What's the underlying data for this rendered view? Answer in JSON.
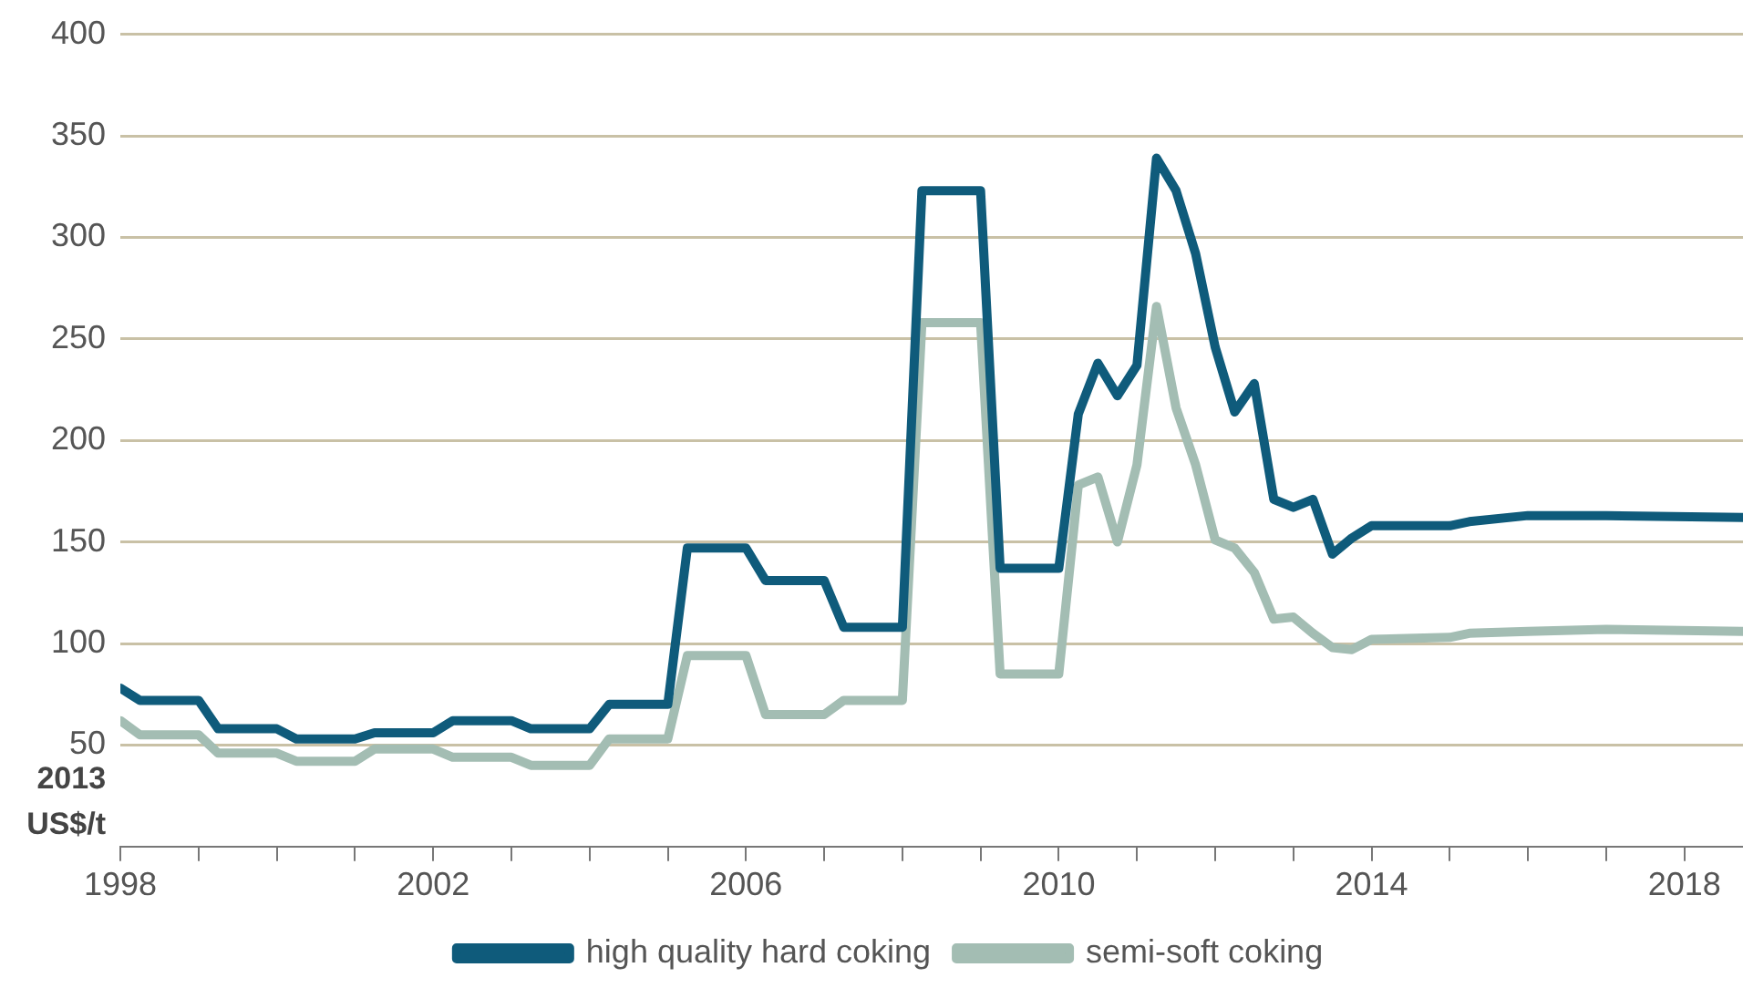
{
  "chart_data": {
    "type": "line",
    "ylabel": "2013 US$/t",
    "xlim": [
      1998,
      2018.75
    ],
    "ylim": [
      0,
      400
    ],
    "xticks": [
      1998,
      {
        "value": 1999,
        "label": null
      },
      {
        "value": 2000,
        "label": null
      },
      {
        "value": 2001,
        "label": null
      },
      2002,
      {
        "value": 2003,
        "label": null
      },
      {
        "value": 2004,
        "label": null
      },
      {
        "value": 2005,
        "label": null
      },
      2006,
      {
        "value": 2007,
        "label": null
      },
      {
        "value": 2008,
        "label": null
      },
      {
        "value": 2009,
        "label": null
      },
      2010,
      {
        "value": 2011,
        "label": null
      },
      {
        "value": 2012,
        "label": null
      },
      {
        "value": 2013,
        "label": null
      },
      2014,
      {
        "value": 2015,
        "label": null
      },
      {
        "value": 2016,
        "label": null
      },
      {
        "value": 2017,
        "label": null
      },
      2018
    ],
    "yticks": [
      50,
      100,
      150,
      200,
      250,
      300,
      350,
      400
    ],
    "grid": "y",
    "legend": "bottom",
    "marker": "none",
    "line_style": "solid",
    "series": [
      {
        "name": "high quality hard coking",
        "color": "#0f5b7b",
        "x": [
          1998,
          1998.25,
          1999,
          1999.25,
          2000,
          2000.25,
          2001,
          2001.25,
          2002,
          2002.25,
          2003,
          2003.25,
          2004,
          2004.25,
          2005,
          2005.25,
          2006,
          2006.25,
          2007,
          2007.25,
          2008,
          2008.25,
          2009,
          2009.25,
          2010,
          2010.25,
          2010.5,
          2010.75,
          2011,
          2011.25,
          2011.5,
          2011.75,
          2012,
          2012.25,
          2012.5,
          2012.75,
          2013,
          2013.25,
          2013.5,
          2013.75,
          2014,
          2015,
          2015.25,
          2016,
          2017,
          2018.75
        ],
        "values": [
          78,
          72,
          72,
          58,
          58,
          53,
          53,
          56,
          56,
          62,
          62,
          58,
          58,
          70,
          70,
          147,
          147,
          131,
          131,
          108,
          108,
          323,
          323,
          137,
          137,
          213,
          238,
          222,
          237,
          339,
          323,
          292,
          246,
          214,
          228,
          171,
          167,
          171,
          144,
          152,
          158,
          158,
          160,
          163,
          163,
          162
        ]
      },
      {
        "name": "semi-soft coking",
        "color": "#a3bdb3",
        "x": [
          1998,
          1998.25,
          1999,
          1999.25,
          2000,
          2000.25,
          2001,
          2001.25,
          2002,
          2002.25,
          2003,
          2003.25,
          2004,
          2004.25,
          2005,
          2005.25,
          2006,
          2006.25,
          2007,
          2007.25,
          2008,
          2008.25,
          2009,
          2009.25,
          2010,
          2010.25,
          2010.5,
          2010.75,
          2011,
          2011.25,
          2011.5,
          2011.75,
          2012,
          2012.25,
          2012.5,
          2012.75,
          2013,
          2013.25,
          2013.5,
          2013.75,
          2014,
          2015,
          2015.25,
          2016,
          2017,
          2018.75
        ],
        "values": [
          62,
          55,
          55,
          46,
          46,
          42,
          42,
          48,
          48,
          44,
          44,
          40,
          40,
          53,
          53,
          94,
          94,
          65,
          65,
          72,
          72,
          258,
          258,
          85,
          85,
          178,
          182,
          150,
          188,
          266,
          216,
          188,
          151,
          147,
          135,
          112,
          113,
          105,
          98,
          97,
          102,
          103,
          105,
          106,
          107,
          106
        ]
      }
    ]
  }
}
